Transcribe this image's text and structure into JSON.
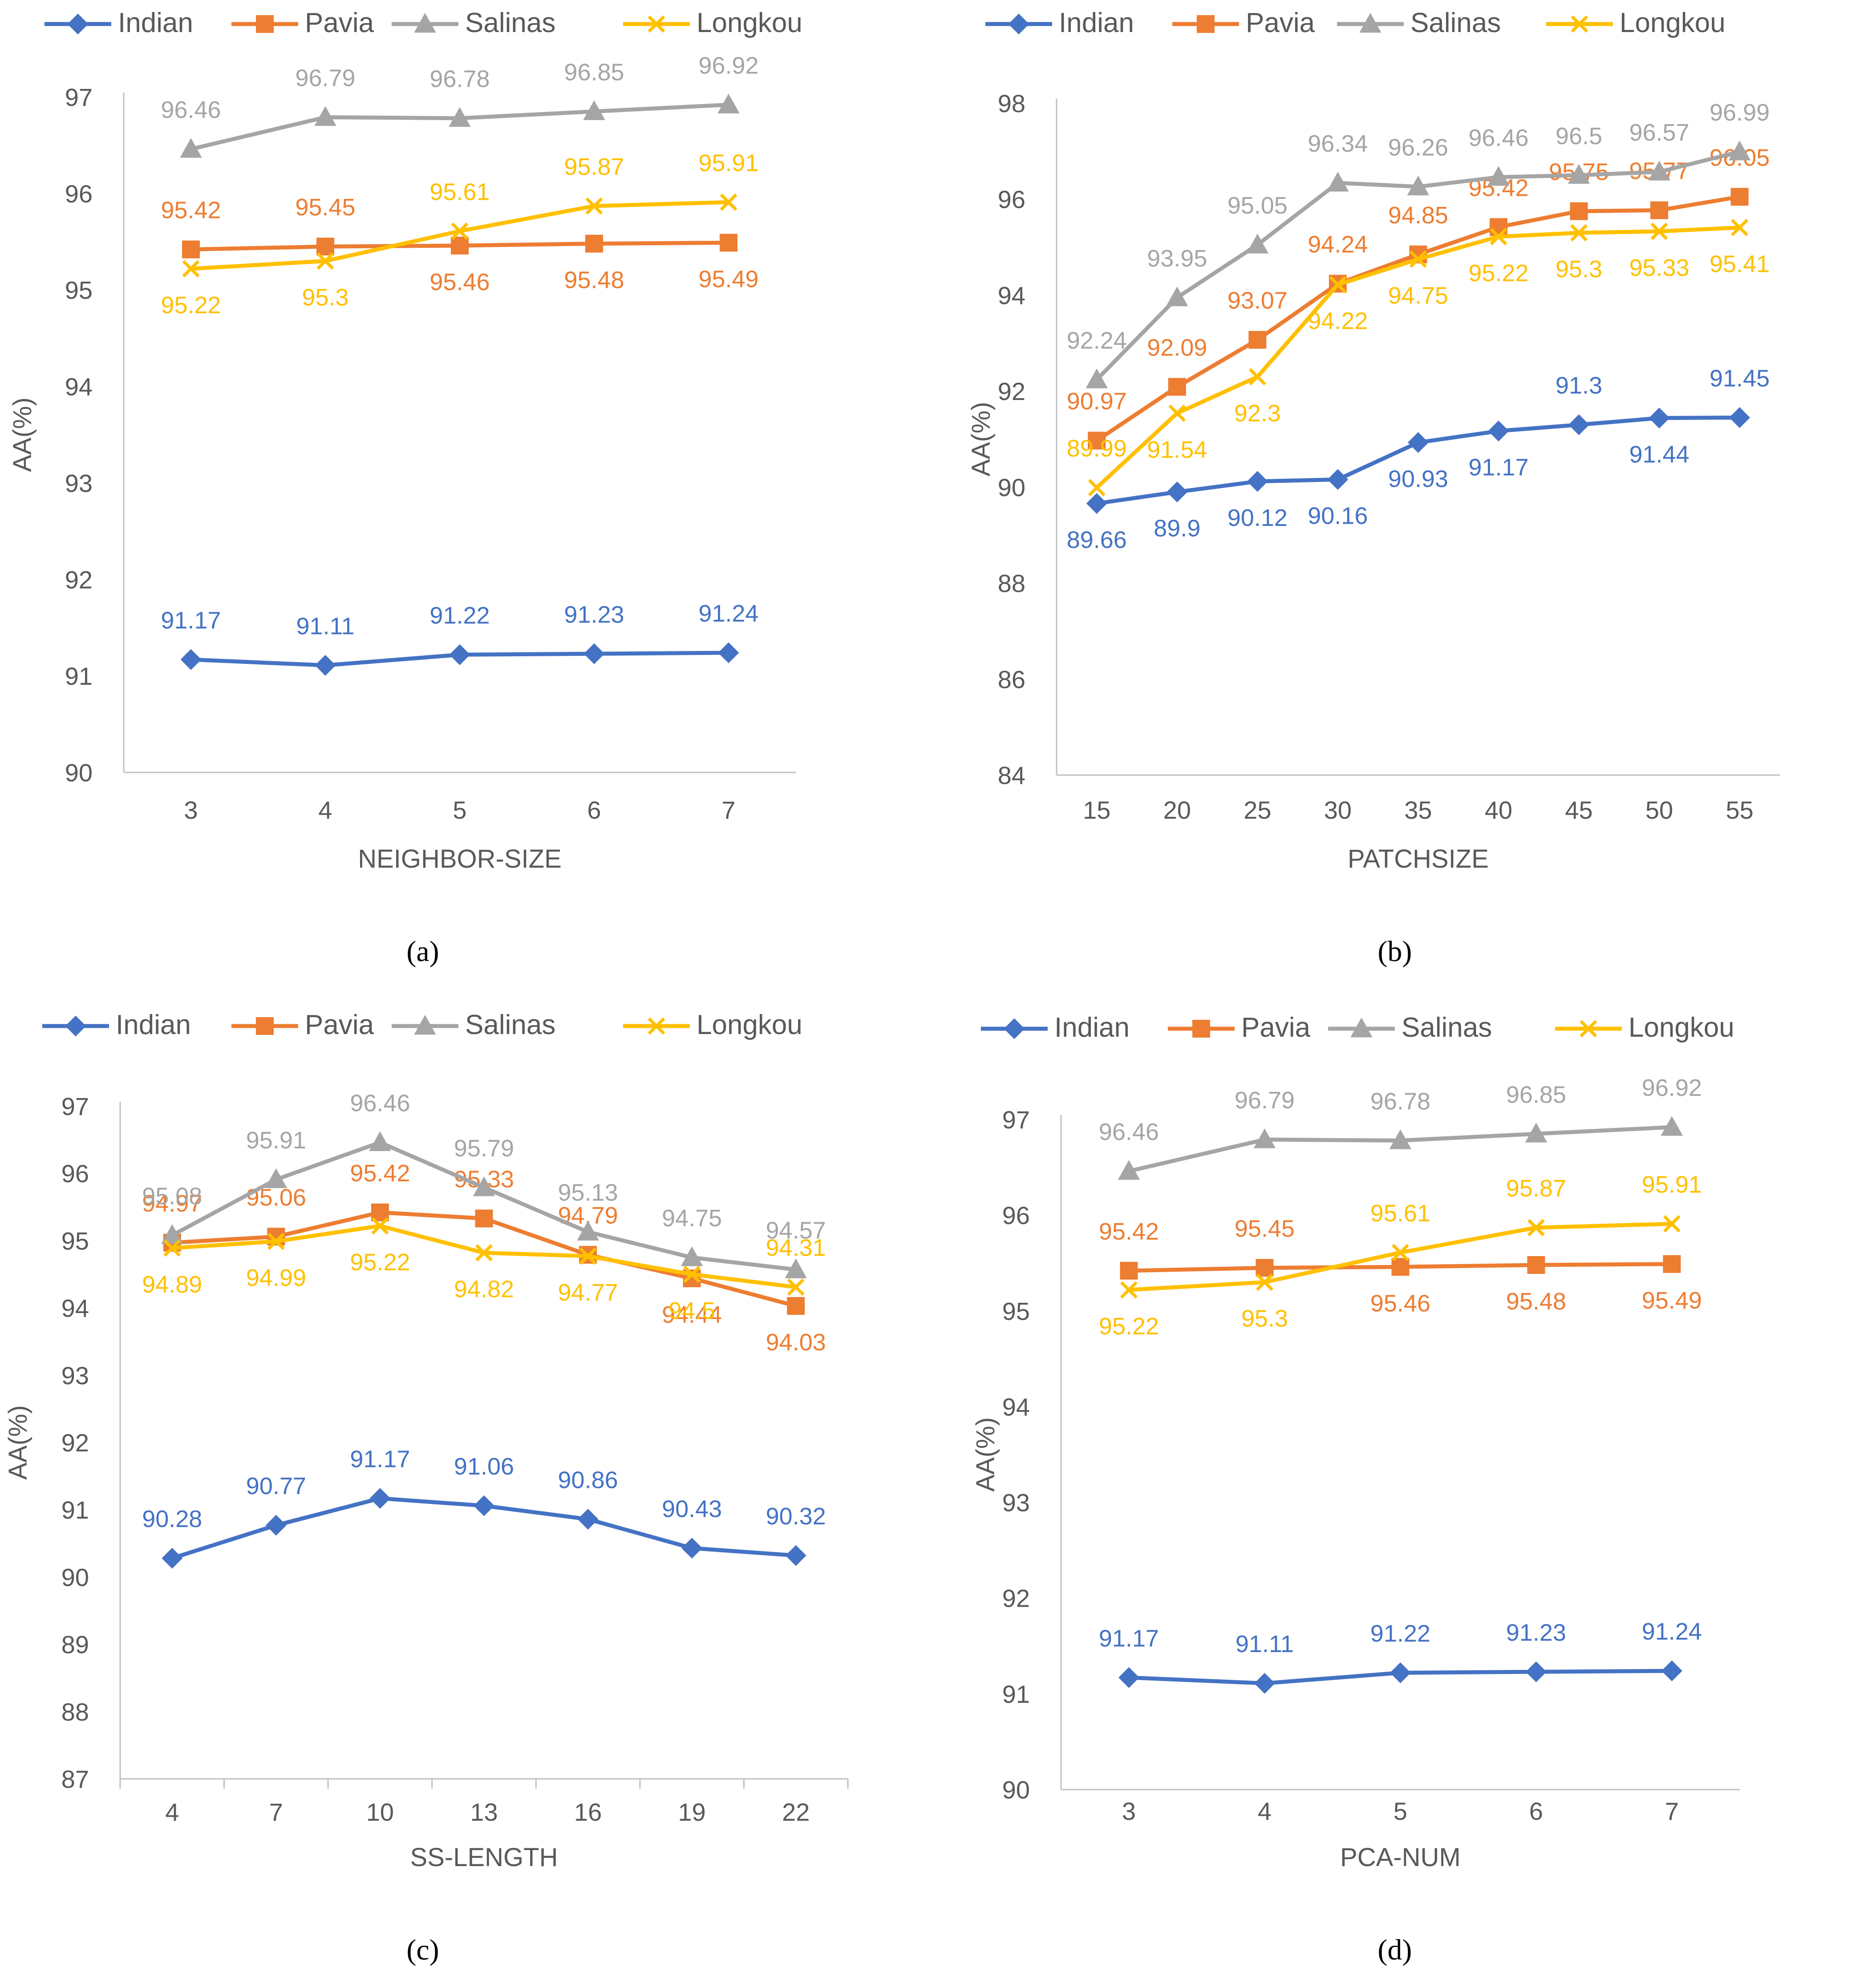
{
  "colors": {
    "Indian": "#4472C4",
    "Pavia": "#ED7D31",
    "Salinas": "#A5A5A5",
    "Longkou": "#FFC000",
    "axis": "#BFBFBF",
    "text": "#595959"
  },
  "markers": {
    "Indian": "diamond",
    "Pavia": "square",
    "Salinas": "triangle",
    "Longkou": "x"
  },
  "chart_data": [
    {
      "type": "line",
      "panel": "(a)",
      "xlabel": "NEIGHBOR-SIZE",
      "ylabel": "AA(%)",
      "ylim": [
        90,
        97
      ],
      "ytick_step": 1,
      "categories": [
        "3",
        "4",
        "5",
        "6",
        "7"
      ],
      "legend": [
        "Indian",
        "Pavia",
        "Salinas",
        "Longkou"
      ],
      "series": [
        {
          "name": "Indian",
          "values": [
            91.17,
            91.11,
            91.22,
            91.23,
            91.24
          ],
          "labels": [
            "91.17",
            "91.11",
            "91.22",
            "91.23",
            "91.24"
          ]
        },
        {
          "name": "Pavia",
          "values": [
            95.42,
            95.45,
            95.46,
            95.48,
            95.49
          ],
          "labels": [
            "95.42",
            "95.45",
            "95.46",
            "95.48",
            "95.49"
          ]
        },
        {
          "name": "Salinas",
          "values": [
            96.46,
            96.79,
            96.78,
            96.85,
            96.92
          ],
          "labels": [
            "96.46",
            "96.79",
            "96.78",
            "96.85",
            "96.92"
          ]
        },
        {
          "name": "Longkou",
          "values": [
            95.22,
            95.3,
            95.61,
            95.87,
            95.91
          ],
          "labels": [
            "95.22",
            "95.3",
            "95.61",
            "95.87",
            "95.91"
          ]
        }
      ]
    },
    {
      "type": "line",
      "panel": "(b)",
      "xlabel": "PATCHSIZE",
      "ylabel": "AA(%)",
      "ylim": [
        84,
        98
      ],
      "ytick_step": 2,
      "categories": [
        "15",
        "20",
        "25",
        "30",
        "35",
        "40",
        "45",
        "50",
        "55"
      ],
      "legend": [
        "Indian",
        "Pavia",
        "Salinas",
        "Longkou"
      ],
      "series": [
        {
          "name": "Indian",
          "values": [
            89.66,
            89.9,
            90.12,
            90.16,
            90.93,
            91.17,
            91.3,
            91.44,
            91.45
          ],
          "labels": [
            "89.66",
            "89.9",
            "90.12",
            "90.16",
            "90.93",
            "91.17",
            "91.3",
            "91.44",
            "91.45"
          ]
        },
        {
          "name": "Pavia",
          "values": [
            90.97,
            92.09,
            93.07,
            94.24,
            94.85,
            95.42,
            95.75,
            95.77,
            96.05
          ],
          "labels": [
            "90.97",
            "92.09",
            "93.07",
            "94.24",
            "94.85",
            "95.42",
            "95.75",
            "95.77",
            "96.05"
          ]
        },
        {
          "name": "Salinas",
          "values": [
            92.24,
            93.95,
            95.05,
            96.34,
            96.26,
            96.46,
            96.5,
            96.57,
            96.99
          ],
          "labels": [
            "92.24",
            "93.95",
            "95.05",
            "96.34",
            "96.26",
            "96.46",
            "96.5",
            "96.57",
            "96.99"
          ]
        },
        {
          "name": "Longkou",
          "values": [
            89.99,
            91.54,
            92.3,
            94.22,
            94.75,
            95.22,
            95.3,
            95.33,
            95.41
          ],
          "labels": [
            "89.99",
            "91.54",
            "92.3",
            "94.22",
            "94.75",
            "95.22",
            "95.3",
            "95.33",
            "95.41"
          ]
        }
      ]
    },
    {
      "type": "line",
      "panel": "(c)",
      "xlabel": "SS-LENGTH",
      "ylabel": "AA(%)",
      "ylim": [
        87,
        97
      ],
      "ytick_step": 1,
      "categories": [
        "4",
        "7",
        "10",
        "13",
        "16",
        "19",
        "22"
      ],
      "legend": [
        "Indian",
        "Pavia",
        "Salinas",
        "Longkou"
      ],
      "series": [
        {
          "name": "Indian",
          "values": [
            90.28,
            90.77,
            91.17,
            91.06,
            90.86,
            90.43,
            90.32
          ],
          "labels": [
            "90.28",
            "90.77",
            "91.17",
            "91.06",
            "90.86",
            "90.43",
            "90.32"
          ]
        },
        {
          "name": "Pavia",
          "values": [
            94.97,
            95.06,
            95.42,
            95.33,
            94.79,
            94.44,
            94.03
          ],
          "labels": [
            "94.97",
            "95.06",
            "95.42",
            "95.33",
            "94.79",
            "94.44",
            "94.03"
          ]
        },
        {
          "name": "Salinas",
          "values": [
            95.08,
            95.91,
            96.46,
            95.79,
            95.13,
            94.75,
            94.57
          ],
          "labels": [
            "95.08",
            "95.91",
            "96.46",
            "95.79",
            "95.13",
            "94.75",
            "94.57"
          ]
        },
        {
          "name": "Longkou",
          "values": [
            94.89,
            94.99,
            95.22,
            94.82,
            94.77,
            94.5,
            94.31
          ],
          "labels": [
            "94.89",
            "94.99",
            "95.22",
            "94.82",
            "94.77",
            "94.5",
            "94.31"
          ]
        }
      ]
    },
    {
      "type": "line",
      "panel": "(d)",
      "xlabel": "PCA-NUM",
      "ylabel": "AA(%)",
      "ylim": [
        90,
        97
      ],
      "ytick_step": 1,
      "categories": [
        "3",
        "4",
        "5",
        "6",
        "7"
      ],
      "legend": [
        "Indian",
        "Pavia",
        "Salinas",
        "Longkou"
      ],
      "series": [
        {
          "name": "Indian",
          "values": [
            91.17,
            91.11,
            91.22,
            91.23,
            91.24
          ],
          "labels": [
            "91.17",
            "91.11",
            "91.22",
            "91.23",
            "91.24"
          ]
        },
        {
          "name": "Pavia",
          "values": [
            95.42,
            95.45,
            95.46,
            95.48,
            95.49
          ],
          "labels": [
            "95.42",
            "95.45",
            "95.46",
            "95.48",
            "95.49"
          ]
        },
        {
          "name": "Salinas",
          "values": [
            96.46,
            96.79,
            96.78,
            96.85,
            96.92
          ],
          "labels": [
            "96.46",
            "96.79",
            "96.78",
            "96.85",
            "96.92"
          ]
        },
        {
          "name": "Longkou",
          "values": [
            95.22,
            95.3,
            95.61,
            95.87,
            95.91
          ],
          "labels": [
            "95.22",
            "95.3",
            "95.61",
            "95.87",
            "95.91"
          ]
        }
      ]
    }
  ]
}
